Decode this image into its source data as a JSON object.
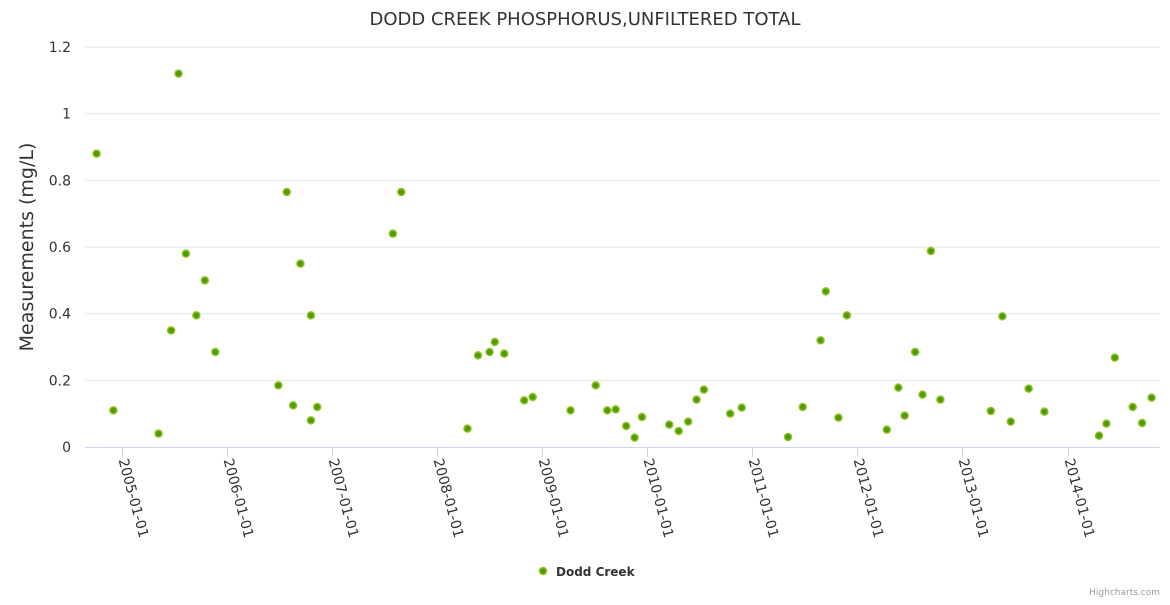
{
  "chart_data": {
    "type": "scatter",
    "title": "DODD CREEK PHOSPHORUS,UNFILTERED TOTAL",
    "xlabel": "",
    "ylabel": "Measurements (mg/L)",
    "x_unit": "decimal year",
    "ylim": [
      0,
      1.2
    ],
    "xlim": [
      2004.65,
      2014.88
    ],
    "y_ticks": [
      "0",
      "0.2",
      "0.4",
      "0.6",
      "0.8",
      "1",
      "1.2"
    ],
    "x_ticks": [
      "2005-01-01",
      "2006-01-01",
      "2007-01-01",
      "2008-01-01",
      "2009-01-01",
      "2010-01-01",
      "2011-01-01",
      "2012-01-01",
      "2013-01-01",
      "2014-01-01"
    ],
    "grid": true,
    "legend_position": "bottom-center",
    "series": [
      {
        "name": "Dodd Creek",
        "color": "#4f9a08",
        "border_color": "#8fc31f",
        "points": [
          [
            2004.76,
            0.88
          ],
          [
            2004.92,
            0.11
          ],
          [
            2005.35,
            0.04
          ],
          [
            2005.47,
            0.35
          ],
          [
            2005.54,
            1.12
          ],
          [
            2005.61,
            0.58
          ],
          [
            2005.71,
            0.395
          ],
          [
            2005.79,
            0.5
          ],
          [
            2005.89,
            0.285
          ],
          [
            2006.49,
            0.185
          ],
          [
            2006.57,
            0.765
          ],
          [
            2006.63,
            0.125
          ],
          [
            2006.7,
            0.55
          ],
          [
            2006.8,
            0.395
          ],
          [
            2006.8,
            0.08
          ],
          [
            2006.86,
            0.12
          ],
          [
            2007.58,
            0.64
          ],
          [
            2007.66,
            0.765
          ],
          [
            2008.29,
            0.055
          ],
          [
            2008.39,
            0.275
          ],
          [
            2008.5,
            0.285
          ],
          [
            2008.55,
            0.315
          ],
          [
            2008.64,
            0.28
          ],
          [
            2008.83,
            0.14
          ],
          [
            2008.91,
            0.15
          ],
          [
            2009.27,
            0.11
          ],
          [
            2009.51,
            0.185
          ],
          [
            2009.62,
            0.11
          ],
          [
            2009.7,
            0.113
          ],
          [
            2009.8,
            0.063
          ],
          [
            2009.88,
            0.028
          ],
          [
            2009.95,
            0.09
          ],
          [
            2010.21,
            0.067
          ],
          [
            2010.3,
            0.048
          ],
          [
            2010.39,
            0.076
          ],
          [
            2010.47,
            0.142
          ],
          [
            2010.54,
            0.172
          ],
          [
            2010.79,
            0.1
          ],
          [
            2010.9,
            0.118
          ],
          [
            2011.34,
            0.03
          ],
          [
            2011.48,
            0.12
          ],
          [
            2011.65,
            0.32
          ],
          [
            2011.7,
            0.467
          ],
          [
            2011.82,
            0.088
          ],
          [
            2011.9,
            0.395
          ],
          [
            2012.28,
            0.052
          ],
          [
            2012.39,
            0.178
          ],
          [
            2012.45,
            0.094
          ],
          [
            2012.55,
            0.285
          ],
          [
            2012.62,
            0.157
          ],
          [
            2012.7,
            0.588
          ],
          [
            2012.79,
            0.142
          ],
          [
            2013.27,
            0.108
          ],
          [
            2013.38,
            0.392
          ],
          [
            2013.46,
            0.076
          ],
          [
            2013.63,
            0.175
          ],
          [
            2013.78,
            0.106
          ],
          [
            2014.3,
            0.034
          ],
          [
            2014.37,
            0.07
          ],
          [
            2014.45,
            0.268
          ],
          [
            2014.62,
            0.12
          ],
          [
            2014.71,
            0.072
          ],
          [
            2014.8,
            0.148
          ]
        ]
      }
    ]
  },
  "credits": "Highcharts.com"
}
